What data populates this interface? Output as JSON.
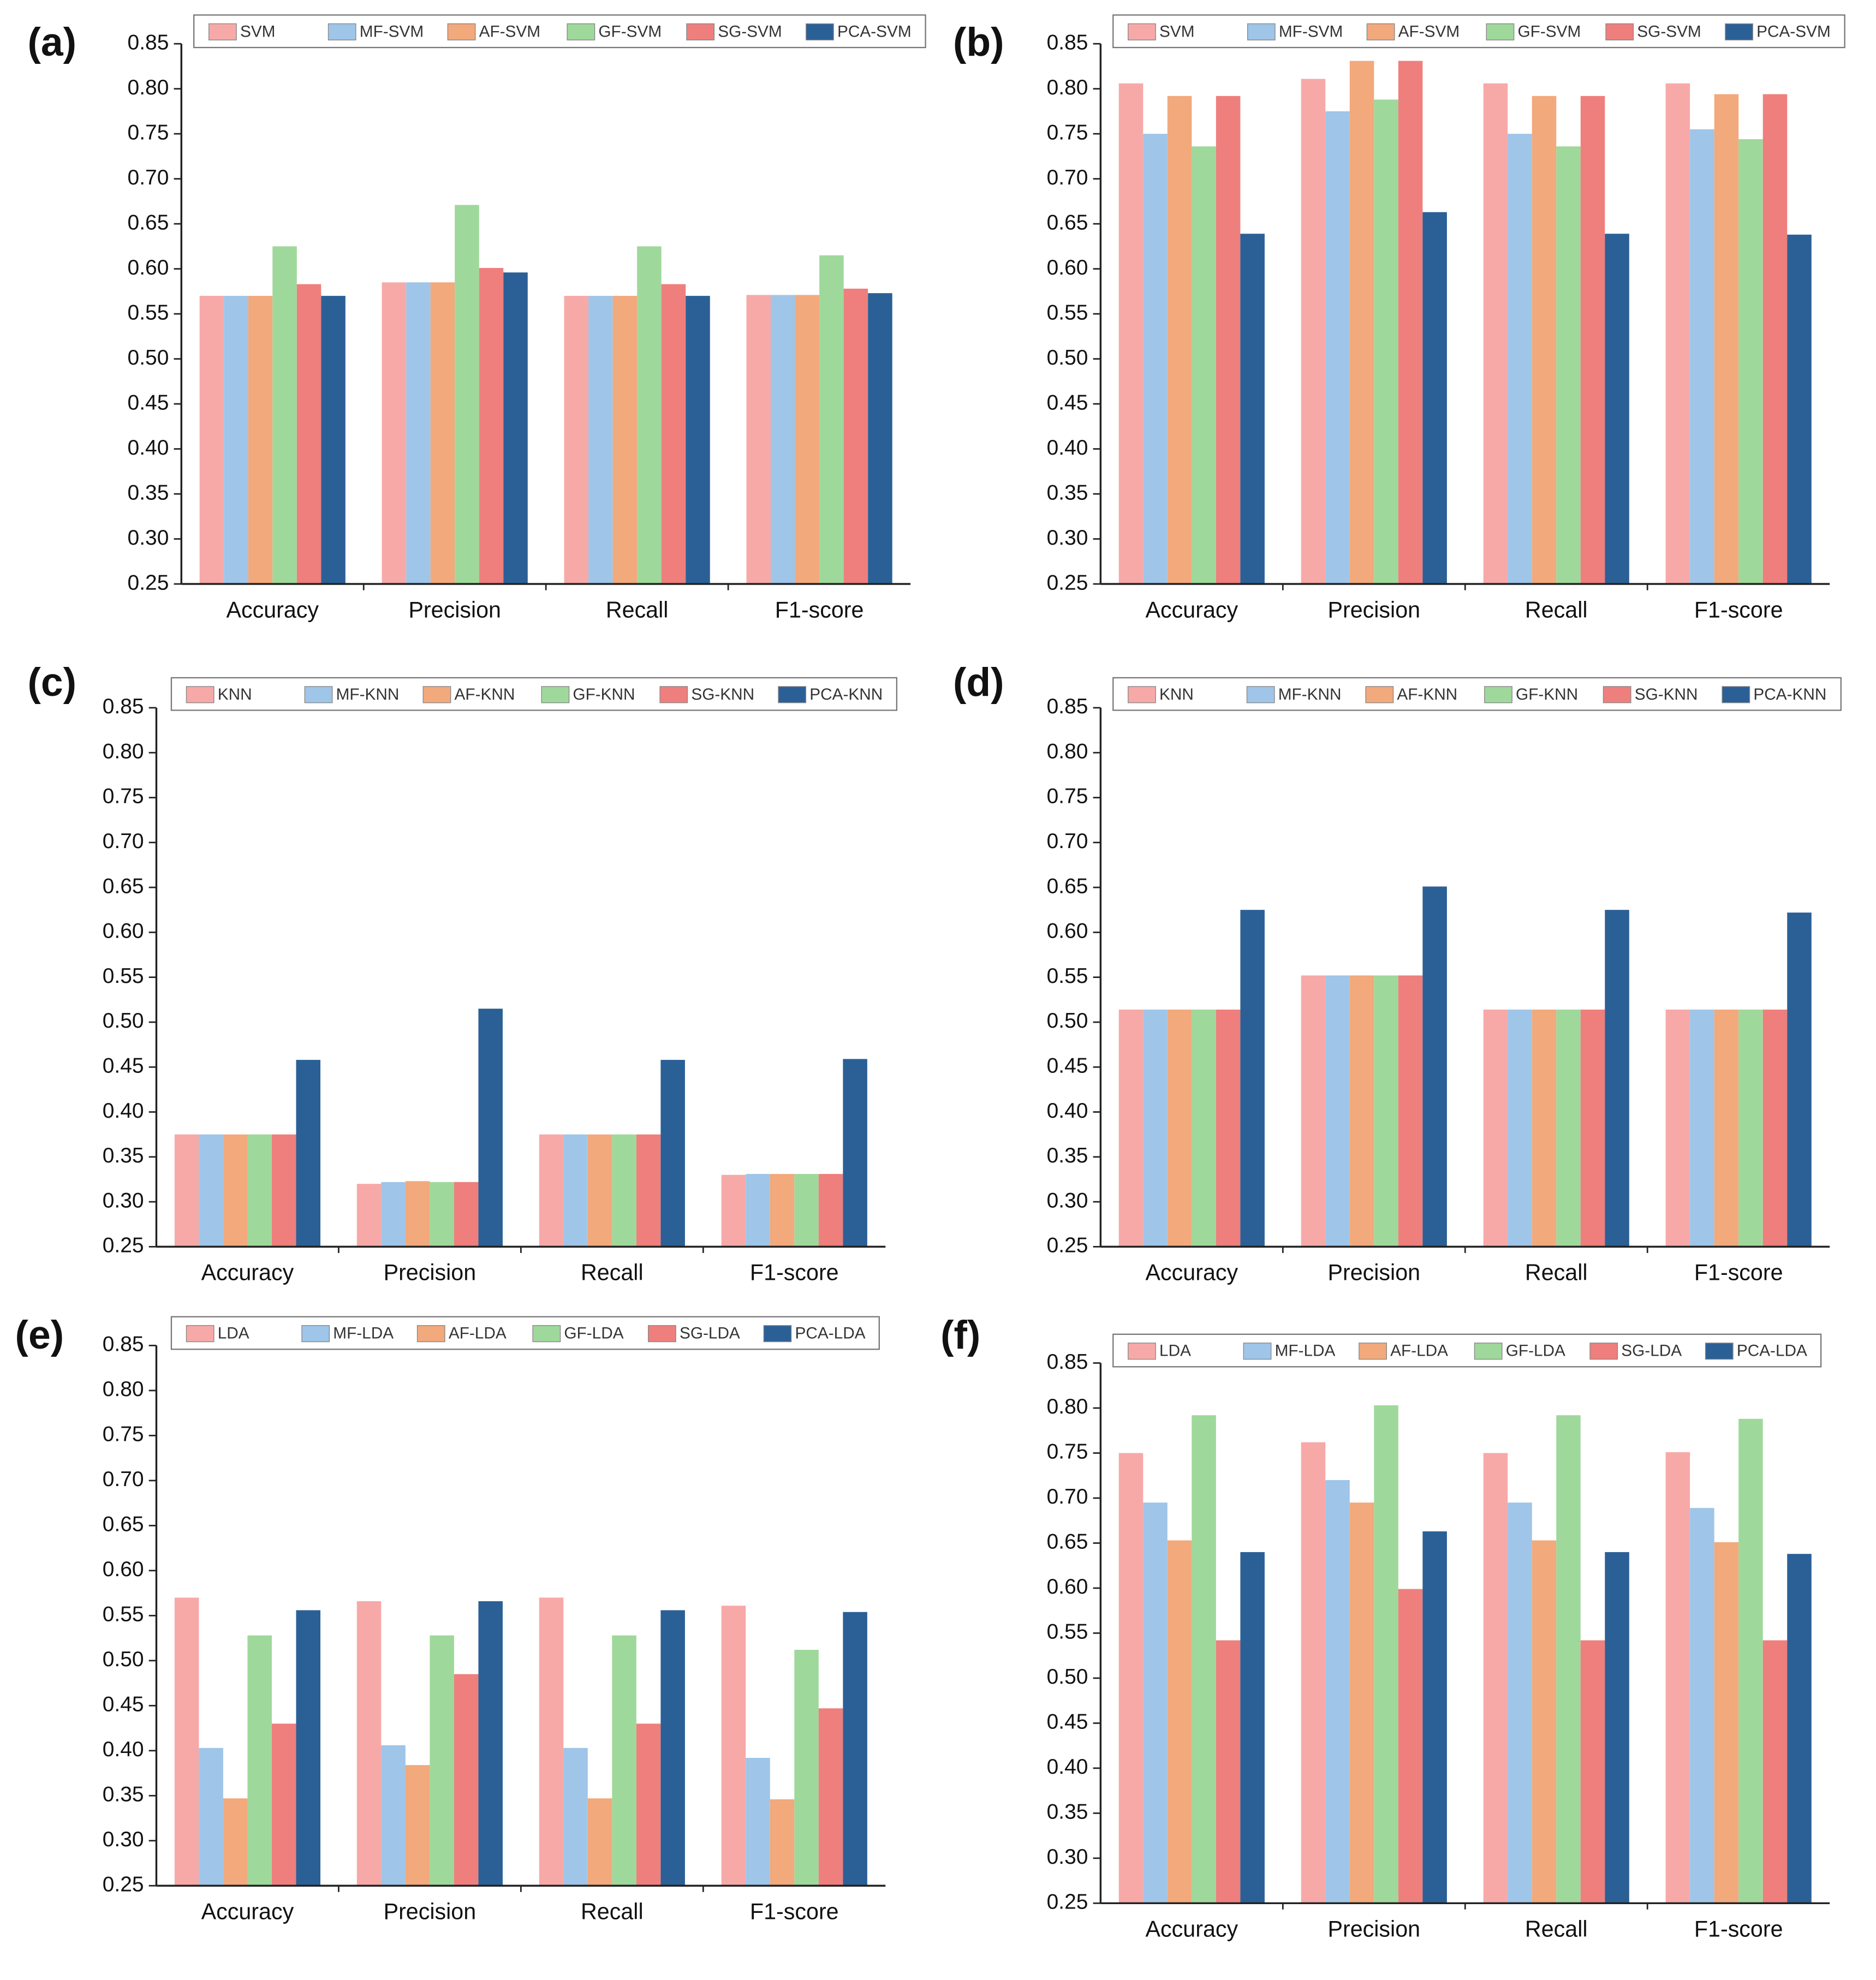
{
  "chart_data": [
    {
      "type": "bar",
      "label": "(a)",
      "legend": "top",
      "categories": [
        "Accuracy",
        "Precision",
        "Recall",
        "F1-score"
      ],
      "ylim": [
        0.25,
        0.85
      ],
      "yticks": [
        0.25,
        {
          "value": 0.3,
          "label": "0.30"
        },
        0.35,
        {
          "value": 0.4,
          "label": "0.40"
        },
        0.45,
        {
          "value": 0.5,
          "label": "0.50"
        },
        0.55,
        {
          "value": 0.6,
          "label": "0.60"
        },
        0.65,
        {
          "value": 0.7,
          "label": "0.70"
        },
        0.75,
        {
          "value": 0.8,
          "label": "0.80"
        },
        0.85
      ],
      "series": [
        {
          "name": "SVM",
          "color": "#f7a9a8",
          "values": [
            0.57,
            0.585,
            0.57,
            0.571
          ]
        },
        {
          "name": "MF-SVM",
          "color": "#9fc5e8",
          "values": [
            0.57,
            0.585,
            0.57,
            0.571
          ]
        },
        {
          "name": "AF-SVM",
          "color": "#f2a97c",
          "values": [
            0.57,
            0.585,
            0.57,
            0.571
          ]
        },
        {
          "name": "GF-SVM",
          "color": "#9fd89b",
          "values": [
            0.625,
            0.671,
            0.625,
            0.615
          ]
        },
        {
          "name": "SG-SVM",
          "color": "#ee7f7d",
          "values": [
            0.583,
            0.601,
            0.583,
            0.578
          ]
        },
        {
          "name": "PCA-SVM",
          "color": "#2b6096",
          "values": [
            0.57,
            0.596,
            0.57,
            0.573
          ]
        }
      ]
    },
    {
      "type": "bar",
      "label": "(b)",
      "legend": "top",
      "categories": [
        "Accuracy",
        "Precision",
        "Recall",
        "F1-score"
      ],
      "ylim": [
        0.25,
        0.85
      ],
      "yticks": [
        0.25,
        {
          "value": 0.3,
          "label": "0.30"
        },
        0.35,
        {
          "value": 0.4,
          "label": "0.40"
        },
        0.45,
        {
          "value": 0.5,
          "label": "0.50"
        },
        0.55,
        {
          "value": 0.6,
          "label": "0.60"
        },
        0.65,
        {
          "value": 0.7,
          "label": "0.70"
        },
        0.75,
        {
          "value": 0.8,
          "label": "0.80"
        },
        0.85
      ],
      "series": [
        {
          "name": "SVM",
          "color": "#f7a9a8",
          "values": [
            0.806,
            0.811,
            0.806,
            0.806
          ]
        },
        {
          "name": "MF-SVM",
          "color": "#9fc5e8",
          "values": [
            0.75,
            0.775,
            0.75,
            0.755
          ]
        },
        {
          "name": "AF-SVM",
          "color": "#f2a97c",
          "values": [
            0.792,
            0.831,
            0.792,
            0.794
          ]
        },
        {
          "name": "GF-SVM",
          "color": "#9fd89b",
          "values": [
            0.736,
            0.788,
            0.736,
            0.744
          ]
        },
        {
          "name": "SG-SVM",
          "color": "#ee7f7d",
          "values": [
            0.792,
            0.831,
            0.792,
            0.794
          ]
        },
        {
          "name": "PCA-SVM",
          "color": "#2b6096",
          "values": [
            0.639,
            0.663,
            0.639,
            0.638
          ]
        }
      ]
    },
    {
      "type": "bar",
      "label": "(c)",
      "legend": "top",
      "categories": [
        "Accuracy",
        "Precision",
        "Recall",
        "F1-score"
      ],
      "ylim": [
        0.25,
        0.85
      ],
      "yticks": [
        0.25,
        {
          "value": 0.3,
          "label": "0.30"
        },
        0.35,
        {
          "value": 0.4,
          "label": "0.40"
        },
        0.45,
        {
          "value": 0.5,
          "label": "0.50"
        },
        0.55,
        {
          "value": 0.6,
          "label": "0.60"
        },
        0.65,
        {
          "value": 0.7,
          "label": "0.70"
        },
        0.75,
        {
          "value": 0.8,
          "label": "0.80"
        },
        0.85
      ],
      "series": [
        {
          "name": "KNN",
          "color": "#f7a9a8",
          "values": [
            0.375,
            0.32,
            0.375,
            0.33
          ]
        },
        {
          "name": "MF-KNN",
          "color": "#9fc5e8",
          "values": [
            0.375,
            0.322,
            0.375,
            0.331
          ]
        },
        {
          "name": "AF-KNN",
          "color": "#f2a97c",
          "values": [
            0.375,
            0.323,
            0.375,
            0.331
          ]
        },
        {
          "name": "GF-KNN",
          "color": "#9fd89b",
          "values": [
            0.375,
            0.322,
            0.375,
            0.331
          ]
        },
        {
          "name": "SG-KNN",
          "color": "#ee7f7d",
          "values": [
            0.375,
            0.322,
            0.375,
            0.331
          ]
        },
        {
          "name": "PCA-KNN",
          "color": "#2b6096",
          "values": [
            0.458,
            0.515,
            0.458,
            0.459
          ]
        }
      ]
    },
    {
      "type": "bar",
      "label": "(d)",
      "legend": "top",
      "categories": [
        "Accuracy",
        "Precision",
        "Recall",
        "F1-score"
      ],
      "ylim": [
        0.25,
        0.85
      ],
      "yticks": [
        0.25,
        {
          "value": 0.3,
          "label": "0.30"
        },
        0.35,
        {
          "value": 0.4,
          "label": "0.40"
        },
        0.45,
        {
          "value": 0.5,
          "label": "0.50"
        },
        0.55,
        {
          "value": 0.6,
          "label": "0.60"
        },
        0.65,
        {
          "value": 0.7,
          "label": "0.70"
        },
        0.75,
        {
          "value": 0.8,
          "label": "0.80"
        },
        0.85
      ],
      "series": [
        {
          "name": "KNN",
          "color": "#f7a9a8",
          "values": [
            0.514,
            0.552,
            0.514,
            0.514
          ]
        },
        {
          "name": "MF-KNN",
          "color": "#9fc5e8",
          "values": [
            0.514,
            0.552,
            0.514,
            0.514
          ]
        },
        {
          "name": "AF-KNN",
          "color": "#f2a97c",
          "values": [
            0.514,
            0.552,
            0.514,
            0.514
          ]
        },
        {
          "name": "GF-KNN",
          "color": "#9fd89b",
          "values": [
            0.514,
            0.552,
            0.514,
            0.514
          ]
        },
        {
          "name": "SG-KNN",
          "color": "#ee7f7d",
          "values": [
            0.514,
            0.552,
            0.514,
            0.514
          ]
        },
        {
          "name": "PCA-KNN",
          "color": "#2b6096",
          "values": [
            0.625,
            0.651,
            0.625,
            0.622
          ]
        }
      ]
    },
    {
      "type": "bar",
      "label": "(e)",
      "legend": "top",
      "categories": [
        "Accuracy",
        "Precision",
        "Recall",
        "F1-score"
      ],
      "ylim": [
        0.25,
        0.85
      ],
      "yticks": [
        0.25,
        {
          "value": 0.3,
          "label": "0.30"
        },
        0.35,
        {
          "value": 0.4,
          "label": "0.40"
        },
        0.45,
        {
          "value": 0.5,
          "label": "0.50"
        },
        0.55,
        {
          "value": 0.6,
          "label": "0.60"
        },
        0.65,
        {
          "value": 0.7,
          "label": "0.70"
        },
        0.75,
        {
          "value": 0.8,
          "label": "0.80"
        },
        0.85
      ],
      "series": [
        {
          "name": "LDA",
          "color": "#f7a9a8",
          "values": [
            0.57,
            0.566,
            0.57,
            0.561
          ]
        },
        {
          "name": "MF-LDA",
          "color": "#9fc5e8",
          "values": [
            0.403,
            0.406,
            0.403,
            0.392
          ]
        },
        {
          "name": "AF-LDA",
          "color": "#f2a97c",
          "values": [
            0.347,
            0.384,
            0.347,
            0.346
          ]
        },
        {
          "name": "GF-LDA",
          "color": "#9fd89b",
          "values": [
            0.528,
            0.528,
            0.528,
            0.512
          ]
        },
        {
          "name": "SG-LDA",
          "color": "#ee7f7d",
          "values": [
            0.43,
            0.485,
            0.43,
            0.447
          ]
        },
        {
          "name": "PCA-LDA",
          "color": "#2b6096",
          "values": [
            0.556,
            0.566,
            0.556,
            0.554
          ]
        }
      ]
    },
    {
      "type": "bar",
      "label": "(f)",
      "legend": "top",
      "categories": [
        "Accuracy",
        "Precision",
        "Recall",
        "F1-score"
      ],
      "ylim": [
        0.25,
        0.85
      ],
      "yticks": [
        0.25,
        {
          "value": 0.3,
          "label": "0.30"
        },
        0.35,
        {
          "value": 0.4,
          "label": "0.40"
        },
        0.45,
        {
          "value": 0.5,
          "label": "0.50"
        },
        0.55,
        {
          "value": 0.6,
          "label": "0.60"
        },
        0.65,
        {
          "value": 0.7,
          "label": "0.70"
        },
        0.75,
        {
          "value": 0.8,
          "label": "0.80"
        },
        0.85
      ],
      "series": [
        {
          "name": "LDA",
          "color": "#f7a9a8",
          "values": [
            0.75,
            0.762,
            0.75,
            0.751
          ]
        },
        {
          "name": "MF-LDA",
          "color": "#9fc5e8",
          "values": [
            0.695,
            0.72,
            0.695,
            0.689
          ]
        },
        {
          "name": "AF-LDA",
          "color": "#f2a97c",
          "values": [
            0.653,
            0.695,
            0.653,
            0.651
          ]
        },
        {
          "name": "GF-LDA",
          "color": "#9fd89b",
          "values": [
            0.792,
            0.803,
            0.792,
            0.788
          ]
        },
        {
          "name": "SG-LDA",
          "color": "#ee7f7d",
          "values": [
            0.542,
            0.599,
            0.542,
            0.542
          ]
        },
        {
          "name": "PCA-LDA",
          "color": "#2b6096",
          "values": [
            0.64,
            0.663,
            0.64,
            0.638
          ]
        }
      ]
    }
  ]
}
